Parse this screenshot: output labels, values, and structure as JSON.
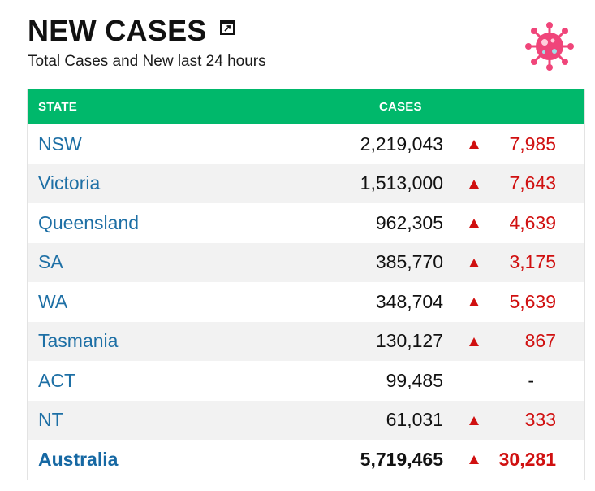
{
  "header": {
    "title": "NEW CASES",
    "subtitle": "Total Cases and New last 24 hours",
    "expand_icon": "expand-icon",
    "logo_icon": "virus-icon"
  },
  "colors": {
    "header_bg": "#00b86b",
    "state_link": "#1d6fa5",
    "increase": "#d01010",
    "virus": "#f0457a"
  },
  "table": {
    "columns": [
      "STATE",
      "CASES"
    ],
    "rows": [
      {
        "state": "NSW",
        "cases": "2,219,043",
        "new": "7,985",
        "trend": "up"
      },
      {
        "state": "Victoria",
        "cases": "1,513,000",
        "new": "7,643",
        "trend": "up"
      },
      {
        "state": "Queensland",
        "cases": "962,305",
        "new": "4,639",
        "trend": "up"
      },
      {
        "state": "SA",
        "cases": "385,770",
        "new": "3,175",
        "trend": "up"
      },
      {
        "state": "WA",
        "cases": "348,704",
        "new": "5,639",
        "trend": "up"
      },
      {
        "state": "Tasmania",
        "cases": "130,127",
        "new": "867",
        "trend": "up"
      },
      {
        "state": "ACT",
        "cases": "99,485",
        "new": "-",
        "trend": "none"
      },
      {
        "state": "NT",
        "cases": "61,031",
        "new": "333",
        "trend": "up"
      }
    ],
    "total": {
      "state": "Australia",
      "cases": "5,719,465",
      "new": "30,281",
      "trend": "up"
    }
  }
}
